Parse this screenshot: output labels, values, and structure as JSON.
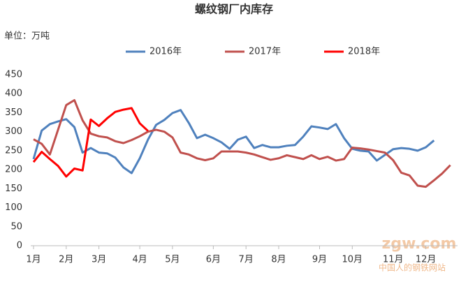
{
  "chart_data": {
    "type": "line",
    "title": "螺纹钢厂内库存",
    "subtitle": "单位：万吨",
    "categories": [
      "1月",
      null,
      null,
      null,
      "2月",
      null,
      null,
      null,
      "3月",
      null,
      null,
      null,
      null,
      "4月",
      null,
      null,
      null,
      "5月",
      null,
      null,
      null,
      null,
      "6月",
      null,
      null,
      null,
      "7月",
      null,
      null,
      null,
      "8月",
      null,
      null,
      null,
      null,
      "9月",
      null,
      null,
      null,
      "10月",
      null,
      null,
      null,
      null,
      "11月",
      null,
      null,
      null,
      "12月",
      null,
      null,
      null
    ],
    "series": [
      {
        "name": "2016年",
        "color": "#4f81bd",
        "values": [
          228,
          303,
          320,
          327,
          333,
          312,
          245,
          257,
          245,
          243,
          232,
          206,
          191,
          230,
          279,
          318,
          331,
          349,
          357,
          323,
          283,
          292,
          283,
          272,
          255,
          279,
          287,
          257,
          265,
          259,
          259,
          263,
          265,
          287,
          314,
          311,
          307,
          320,
          283,
          255,
          250,
          248,
          224,
          239,
          254,
          257,
          255,
          250,
          259,
          277,
          null,
          null
        ]
      },
      {
        "name": "2017年",
        "color": "#c0504d",
        "values": [
          280,
          268,
          240,
          305,
          370,
          383,
          330,
          295,
          288,
          285,
          275,
          270,
          278,
          288,
          300,
          305,
          300,
          285,
          245,
          240,
          230,
          225,
          230,
          248,
          248,
          248,
          245,
          240,
          233,
          226,
          230,
          238,
          233,
          228,
          238,
          228,
          234,
          224,
          228,
          258,
          256,
          253,
          249,
          245,
          225,
          192,
          185,
          158,
          155,
          172,
          190,
          212
        ]
      },
      {
        "name": "2018年",
        "color": "#ff0000",
        "values": [
          220,
          247,
          228,
          210,
          182,
          203,
          198,
          332,
          315,
          335,
          352,
          358,
          362,
          322,
          302,
          null,
          null,
          null,
          null,
          null,
          null,
          null,
          null,
          null,
          null,
          null,
          null,
          null,
          null,
          null,
          null,
          null,
          null,
          null,
          null,
          null,
          null,
          null,
          null,
          null,
          null,
          null,
          null,
          null,
          null,
          null,
          null,
          null,
          null,
          null,
          null,
          null
        ]
      }
    ],
    "ylim": [
      0,
      450
    ],
    "yticks": [
      0,
      50,
      100,
      150,
      200,
      250,
      300,
      350,
      400,
      450
    ],
    "grid": false,
    "legend": "top",
    "watermark": {
      "logo": "zgw.com",
      "slogan": "中国人的钢铁网站"
    }
  }
}
